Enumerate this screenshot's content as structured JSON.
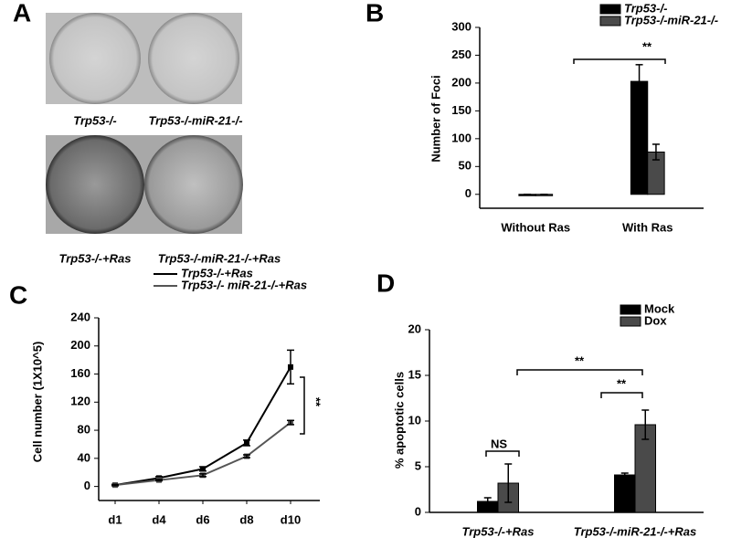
{
  "panel_a": {
    "label": "A",
    "captions": [
      "Trp53-/-",
      "Trp53-/-miR-21-/-",
      "Trp53-/-+Ras",
      "Trp53-/-miR-21-/-+Ras"
    ]
  },
  "chart_data": [
    {
      "type": "bar",
      "label": "B",
      "ylabel": "Number of Foci",
      "categories": [
        "Without Ras",
        "With Ras"
      ],
      "series": [
        {
          "name": "Trp53-/-",
          "color": "#000000",
          "values": [
            0,
            203
          ],
          "errors": [
            0,
            30
          ]
        },
        {
          "name": "Trp53-/-miR-21-/-",
          "color": "#4a4a4a",
          "values": [
            0,
            76
          ],
          "errors": [
            0,
            14
          ]
        }
      ],
      "ylim": [
        -25,
        300
      ],
      "yticks": [
        0,
        50,
        100,
        150,
        200,
        250,
        300
      ],
      "annotations": [
        "**"
      ]
    },
    {
      "type": "line",
      "label": "C",
      "ylabel": "Cell number (1X10^5)",
      "categories": [
        "d1",
        "d4",
        "d6",
        "d8",
        "d10"
      ],
      "series": [
        {
          "name": "Trp53-/-+Ras",
          "color": "#000000",
          "values": [
            2,
            12,
            25,
            62,
            170
          ],
          "errors": [
            1,
            2,
            3,
            4,
            24
          ]
        },
        {
          "name": "Trp53-/- miR-21-/-+Ras",
          "color": "#555555",
          "values": [
            2,
            9,
            16,
            43,
            91
          ],
          "errors": [
            1,
            1,
            2,
            2,
            3
          ]
        }
      ],
      "ylim": [
        -20,
        240
      ],
      "yticks": [
        0,
        40,
        80,
        120,
        160,
        200,
        240
      ],
      "annotations": [
        "**"
      ]
    },
    {
      "type": "bar",
      "label": "D",
      "ylabel": "% apoptotic cells",
      "categories": [
        "Trp53-/-+Ras",
        "Trp53-/-miR-21-/-+Ras"
      ],
      "series": [
        {
          "name": "Mock",
          "color": "#000000",
          "values": [
            1.2,
            4.1
          ],
          "errors": [
            0.4,
            0.2
          ]
        },
        {
          "name": "Dox",
          "color": "#4a4a4a",
          "values": [
            3.2,
            9.6
          ],
          "errors": [
            2.1,
            1.6
          ]
        }
      ],
      "ylim": [
        0,
        20
      ],
      "yticks": [
        0,
        5,
        10,
        15,
        20
      ],
      "annotations": [
        "NS",
        "**",
        "**"
      ]
    }
  ]
}
